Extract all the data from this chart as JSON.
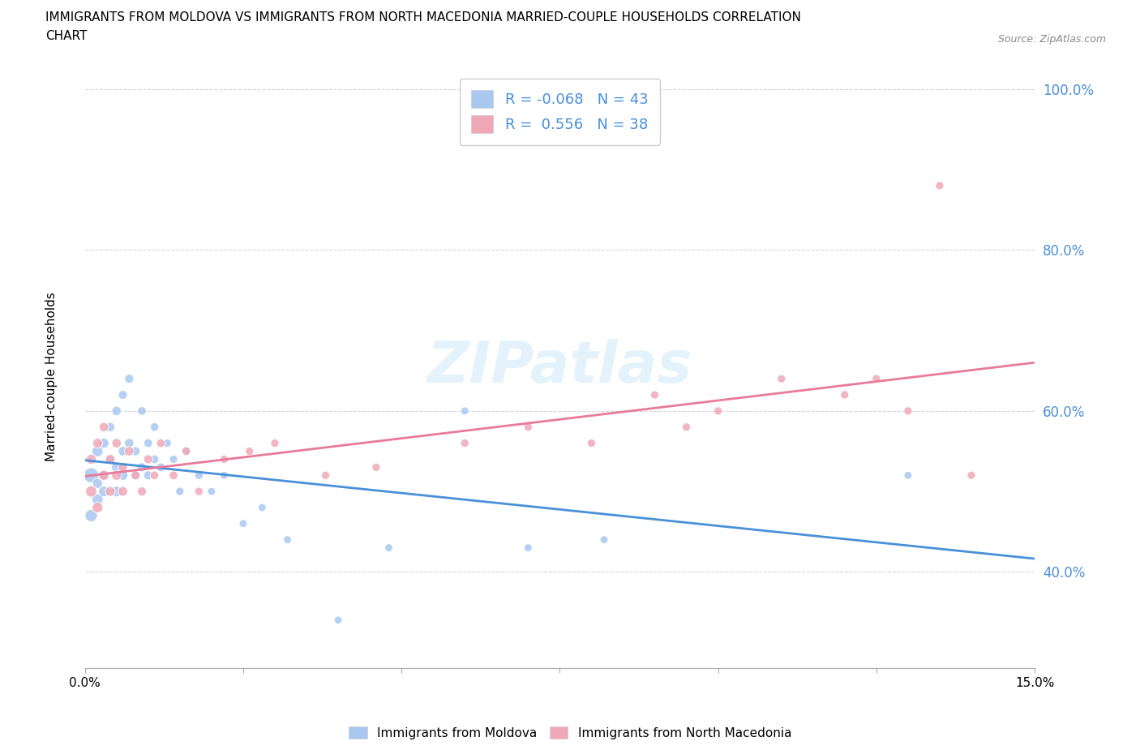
{
  "title_line1": "IMMIGRANTS FROM MOLDOVA VS IMMIGRANTS FROM NORTH MACEDONIA MARRIED-COUPLE HOUSEHOLDS CORRELATION",
  "title_line2": "CHART",
  "source": "Source: ZipAtlas.com",
  "ylabel": "Married-couple Households",
  "xlim": [
    0.0,
    0.15
  ],
  "ylim": [
    0.28,
    1.03
  ],
  "yticks": [
    0.4,
    0.6,
    0.8,
    1.0
  ],
  "ytick_labels": [
    "40.0%",
    "60.0%",
    "80.0%",
    "100.0%"
  ],
  "xticks": [
    0.0,
    0.025,
    0.05,
    0.075,
    0.1,
    0.125,
    0.15
  ],
  "xtick_labels": [
    "0.0%",
    "",
    "",
    "",
    "",
    "",
    "15.0%"
  ],
  "moldova_color": "#a8c8f0",
  "macedonia_color": "#f0a8b8",
  "moldova_line_color": "#4a90d9",
  "macedonia_line_color": "#e87a9a",
  "R_moldova": -0.068,
  "N_moldova": 43,
  "R_macedonia": 0.556,
  "N_macedonia": 38,
  "watermark": "ZIPatlas",
  "moldova_x": [
    0.001,
    0.001,
    0.002,
    0.002,
    0.002,
    0.003,
    0.003,
    0.003,
    0.004,
    0.004,
    0.005,
    0.005,
    0.005,
    0.006,
    0.006,
    0.006,
    0.007,
    0.007,
    0.008,
    0.008,
    0.009,
    0.009,
    0.01,
    0.01,
    0.011,
    0.011,
    0.012,
    0.013,
    0.014,
    0.015,
    0.016,
    0.018,
    0.02,
    0.022,
    0.025,
    0.028,
    0.032,
    0.04,
    0.048,
    0.06,
    0.07,
    0.082,
    0.13
  ],
  "moldova_y": [
    0.52,
    0.47,
    0.55,
    0.51,
    0.49,
    0.52,
    0.56,
    0.5,
    0.54,
    0.58,
    0.5,
    0.53,
    0.6,
    0.52,
    0.55,
    0.62,
    0.56,
    0.64,
    0.52,
    0.55,
    0.53,
    0.6,
    0.52,
    0.56,
    0.54,
    0.58,
    0.53,
    0.56,
    0.54,
    0.5,
    0.55,
    0.52,
    0.5,
    0.52,
    0.46,
    0.48,
    0.44,
    0.34,
    0.43,
    0.6,
    0.43,
    0.44,
    0.52
  ],
  "moldova_sizes": [
    180,
    120,
    100,
    80,
    100,
    90,
    80,
    90,
    80,
    70,
    90,
    80,
    70,
    80,
    70,
    65,
    70,
    65,
    70,
    65,
    65,
    60,
    65,
    60,
    60,
    60,
    60,
    55,
    55,
    55,
    55,
    55,
    50,
    50,
    50,
    50,
    50,
    50,
    50,
    50,
    50,
    50,
    50
  ],
  "macedonia_x": [
    0.001,
    0.001,
    0.002,
    0.002,
    0.003,
    0.003,
    0.004,
    0.004,
    0.005,
    0.005,
    0.006,
    0.006,
    0.007,
    0.008,
    0.009,
    0.01,
    0.011,
    0.012,
    0.014,
    0.016,
    0.018,
    0.022,
    0.026,
    0.03,
    0.038,
    0.046,
    0.06,
    0.07,
    0.08,
    0.09,
    0.095,
    0.1,
    0.11,
    0.12,
    0.125,
    0.13,
    0.135,
    0.14
  ],
  "macedonia_y": [
    0.5,
    0.54,
    0.48,
    0.56,
    0.52,
    0.58,
    0.5,
    0.54,
    0.52,
    0.56,
    0.5,
    0.53,
    0.55,
    0.52,
    0.5,
    0.54,
    0.52,
    0.56,
    0.52,
    0.55,
    0.5,
    0.54,
    0.55,
    0.56,
    0.52,
    0.53,
    0.56,
    0.58,
    0.56,
    0.62,
    0.58,
    0.6,
    0.64,
    0.62,
    0.64,
    0.6,
    0.88,
    0.52
  ],
  "macedonia_sizes": [
    100,
    80,
    90,
    75,
    80,
    70,
    75,
    70,
    80,
    70,
    75,
    65,
    70,
    65,
    65,
    65,
    60,
    60,
    60,
    60,
    55,
    55,
    55,
    55,
    55,
    55,
    55,
    55,
    55,
    55,
    55,
    55,
    55,
    55,
    55,
    55,
    55,
    55
  ]
}
